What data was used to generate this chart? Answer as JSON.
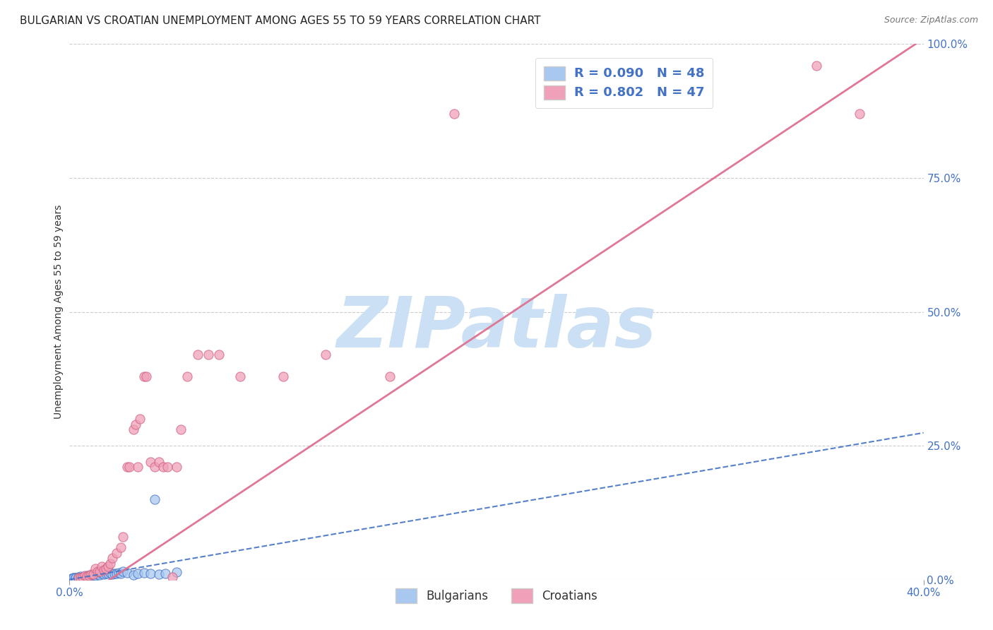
{
  "title": "BULGARIAN VS CROATIAN UNEMPLOYMENT AMONG AGES 55 TO 59 YEARS CORRELATION CHART",
  "source": "Source: ZipAtlas.com",
  "ylabel": "Unemployment Among Ages 55 to 59 years",
  "bg_color": "#ffffff",
  "watermark": "ZIPatlas",
  "xlim": [
    0.0,
    0.4
  ],
  "ylim": [
    0.0,
    1.0
  ],
  "bg_plot_color": "#ffffff",
  "grid_color": "#cccccc",
  "scatter_size": 90,
  "bulgarian_scatter_color": "#a8c8f0",
  "bulgarian_scatter_edge": "#4472c4",
  "croatian_scatter_color": "#f0a0b8",
  "croatian_scatter_edge": "#d06080",
  "trend_bulgarian_color": "#4472c4",
  "trend_croatian_color": "#e07090",
  "title_fontsize": 11,
  "axis_label_fontsize": 10,
  "tick_label_fontsize": 11,
  "source_fontsize": 9,
  "watermark_color": "#cce0f5",
  "watermark_fontsize": 72,
  "cr_x": [
    0.004,
    0.005,
    0.006,
    0.007,
    0.008,
    0.009,
    0.01,
    0.011,
    0.012,
    0.013,
    0.014,
    0.015,
    0.016,
    0.017,
    0.018,
    0.019,
    0.02,
    0.022,
    0.024,
    0.025,
    0.027,
    0.028,
    0.03,
    0.031,
    0.032,
    0.033,
    0.035,
    0.036,
    0.038,
    0.04,
    0.042,
    0.044,
    0.046,
    0.048,
    0.05,
    0.052,
    0.055,
    0.06,
    0.065,
    0.07,
    0.08,
    0.1,
    0.12,
    0.15,
    0.18,
    0.35,
    0.37
  ],
  "cr_y": [
    0.003,
    0.004,
    0.005,
    0.007,
    0.006,
    0.008,
    0.01,
    0.01,
    0.02,
    0.015,
    0.015,
    0.025,
    0.018,
    0.02,
    0.025,
    0.03,
    0.04,
    0.05,
    0.06,
    0.08,
    0.21,
    0.21,
    0.28,
    0.29,
    0.21,
    0.3,
    0.38,
    0.38,
    0.22,
    0.21,
    0.22,
    0.21,
    0.21,
    0.005,
    0.21,
    0.28,
    0.38,
    0.42,
    0.42,
    0.42,
    0.38,
    0.38,
    0.42,
    0.38,
    0.87,
    0.96,
    0.87
  ],
  "bg_x": [
    0.001,
    0.001,
    0.002,
    0.002,
    0.002,
    0.003,
    0.003,
    0.003,
    0.004,
    0.004,
    0.004,
    0.005,
    0.005,
    0.005,
    0.006,
    0.006,
    0.007,
    0.007,
    0.008,
    0.008,
    0.009,
    0.009,
    0.01,
    0.01,
    0.011,
    0.012,
    0.013,
    0.014,
    0.015,
    0.016,
    0.017,
    0.018,
    0.019,
    0.02,
    0.021,
    0.022,
    0.023,
    0.024,
    0.025,
    0.027,
    0.03,
    0.032,
    0.035,
    0.038,
    0.04,
    0.042,
    0.045,
    0.05
  ],
  "bg_y": [
    0.001,
    0.002,
    0.001,
    0.003,
    0.004,
    0.002,
    0.003,
    0.004,
    0.002,
    0.003,
    0.005,
    0.003,
    0.004,
    0.006,
    0.004,
    0.005,
    0.003,
    0.006,
    0.004,
    0.007,
    0.005,
    0.008,
    0.006,
    0.009,
    0.007,
    0.008,
    0.01,
    0.009,
    0.011,
    0.01,
    0.012,
    0.011,
    0.013,
    0.01,
    0.012,
    0.011,
    0.013,
    0.012,
    0.015,
    0.013,
    0.009,
    0.011,
    0.013,
    0.012,
    0.15,
    0.01,
    0.012,
    0.014
  ]
}
